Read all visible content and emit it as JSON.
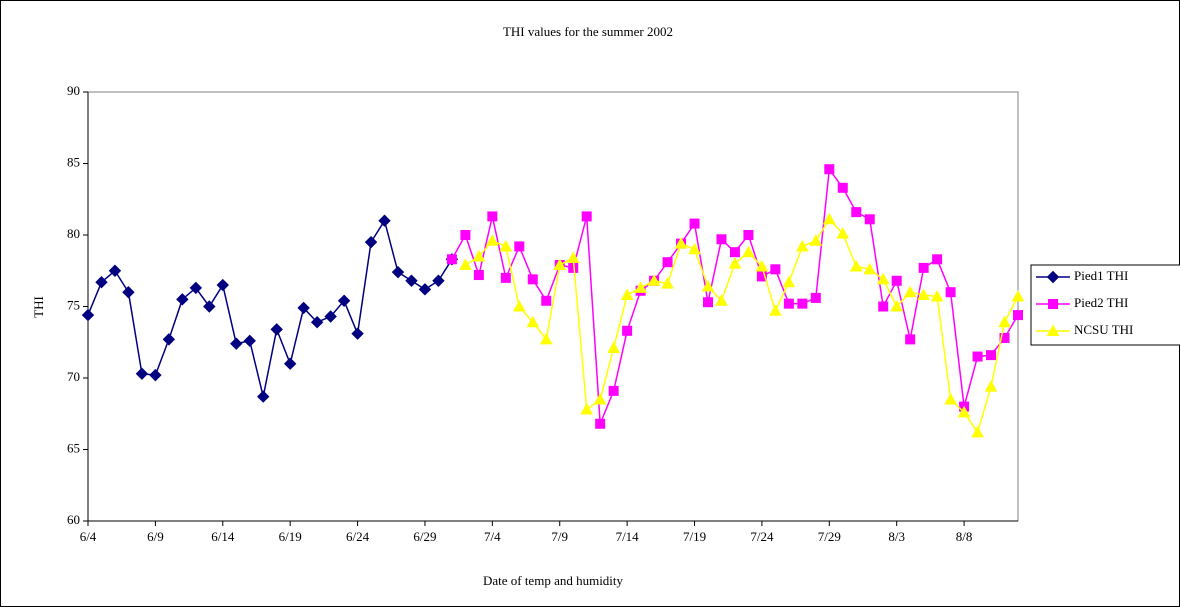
{
  "chart_data": {
    "type": "line",
    "title": "THI values for the summer 2002",
    "x_label": "Date of temp and humidity",
    "y_label": "THI",
    "categories": [
      "6/4",
      null,
      null,
      null,
      null,
      "6/9",
      null,
      null,
      null,
      null,
      "6/14",
      null,
      null,
      null,
      null,
      "6/19",
      null,
      null,
      null,
      null,
      "6/24",
      null,
      null,
      null,
      null,
      "6/29",
      null,
      null,
      null,
      null,
      "7/4",
      null,
      null,
      null,
      null,
      "7/9",
      null,
      null,
      null,
      null,
      "7/14",
      null,
      null,
      null,
      null,
      "7/19",
      null,
      null,
      null,
      null,
      "7/24",
      null,
      null,
      null,
      null,
      "7/29",
      null,
      null,
      null,
      null,
      "8/3",
      null,
      null,
      null,
      null,
      "8/8",
      null,
      null,
      null,
      null
    ],
    "ylim": [
      60,
      90
    ],
    "yticks": [
      60,
      65,
      70,
      75,
      80,
      85,
      90
    ],
    "legend": "right",
    "series": [
      {
        "name": "Pied1 THI",
        "color": "#000080",
        "marker": "diamond",
        "values": [
          74.4,
          76.7,
          77.5,
          76.0,
          70.3,
          70.2,
          72.7,
          75.5,
          76.3,
          75.0,
          76.5,
          72.4,
          72.6,
          68.7,
          73.4,
          71.0,
          74.9,
          73.9,
          74.3,
          75.4,
          73.1,
          79.5,
          81.0,
          77.4,
          76.8,
          76.2,
          76.8,
          78.3,
          null,
          null,
          null,
          null,
          null,
          null,
          null,
          null,
          null,
          null,
          null,
          null,
          null,
          null,
          null,
          null,
          null,
          null,
          null,
          null,
          null,
          null,
          null,
          null,
          null,
          null,
          null,
          null,
          null,
          null,
          null,
          null,
          null,
          null,
          null,
          null,
          null,
          null,
          null,
          null,
          null,
          null
        ]
      },
      {
        "name": "Pied2 THI",
        "color": "#ff00ff",
        "marker": "square",
        "values": [
          null,
          null,
          null,
          null,
          null,
          null,
          null,
          null,
          null,
          null,
          null,
          null,
          null,
          null,
          null,
          null,
          null,
          null,
          null,
          null,
          null,
          null,
          null,
          null,
          null,
          null,
          null,
          78.3,
          80.0,
          77.2,
          81.3,
          77.0,
          79.2,
          76.9,
          75.4,
          77.9,
          77.7,
          81.3,
          66.8,
          69.1,
          73.3,
          76.1,
          76.8,
          78.1,
          79.4,
          80.8,
          75.3,
          79.7,
          78.8,
          80.0,
          77.1,
          77.6,
          75.2,
          75.2,
          75.6,
          84.6,
          83.3,
          81.6,
          81.1,
          75.0,
          76.8,
          72.7,
          77.7,
          78.3,
          76.0,
          68.0,
          71.5,
          71.6,
          72.8,
          74.4
        ]
      },
      {
        "name": "NCSU THI",
        "color": "#ffff00",
        "marker": "triangle",
        "values": [
          null,
          null,
          null,
          null,
          null,
          null,
          null,
          null,
          null,
          null,
          null,
          null,
          null,
          null,
          null,
          null,
          null,
          null,
          null,
          null,
          null,
          null,
          null,
          null,
          null,
          null,
          null,
          null,
          77.9,
          78.5,
          79.6,
          79.2,
          75.0,
          73.9,
          72.7,
          77.9,
          78.4,
          67.8,
          68.5,
          72.1,
          75.8,
          76.3,
          76.8,
          76.6,
          79.4,
          79.0,
          76.4,
          75.4,
          78.0,
          78.8,
          77.8,
          74.7,
          76.7,
          79.2,
          79.6,
          81.1,
          80.1,
          77.8,
          77.6,
          76.9,
          75.0,
          76.0,
          75.8,
          75.7,
          68.5,
          67.6,
          66.2,
          69.4,
          73.9,
          75.7
        ]
      }
    ]
  }
}
